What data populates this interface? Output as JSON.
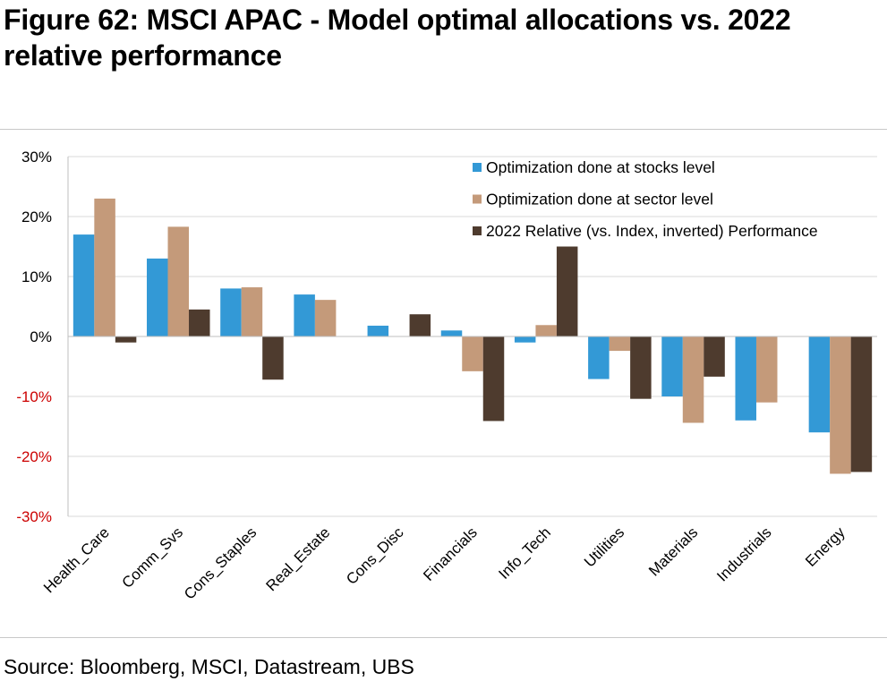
{
  "page": {
    "title": "Figure 62: MSCI APAC - Model optimal allocations vs. 2022 relative performance",
    "source": "Source: Bloomberg, MSCI, Datastream, UBS"
  },
  "chart_data": {
    "type": "bar",
    "title": "",
    "xlabel": "",
    "ylabel": "",
    "ylim": [
      -0.3,
      0.3
    ],
    "y_ticks": [
      "30%",
      "20%",
      "10%",
      "0%",
      "-10%",
      "-20%",
      "-30%"
    ],
    "negative_tick_color": "#cc0000",
    "grid": true,
    "legend_position": "top-right",
    "categories": [
      "Health_Care",
      "Comm_Svs",
      "Cons_Staples",
      "Real_Estate",
      "Cons_Disc",
      "Financials",
      "Info_Tech",
      "Utilities",
      "Materials",
      "Industrials",
      "Energy"
    ],
    "series": [
      {
        "name": "Optimization done at stocks level",
        "color": "#3399d6",
        "values": [
          0.17,
          0.13,
          0.08,
          0.07,
          0.018,
          0.01,
          -0.01,
          -0.071,
          -0.1,
          -0.14,
          -0.16
        ]
      },
      {
        "name": "Optimization done at sector level",
        "color": "#c49a7a",
        "values": [
          0.23,
          0.183,
          0.082,
          0.061,
          0.0,
          -0.058,
          0.019,
          -0.024,
          -0.144,
          -0.11,
          -0.229
        ]
      },
      {
        "name": "2022 Relative (vs. Index, inverted) Performance",
        "color": "#4e3b2e",
        "values": [
          -0.01,
          0.045,
          -0.072,
          0.0,
          0.037,
          -0.141,
          0.15,
          -0.104,
          -0.067,
          0.0,
          -0.226
        ]
      }
    ]
  }
}
